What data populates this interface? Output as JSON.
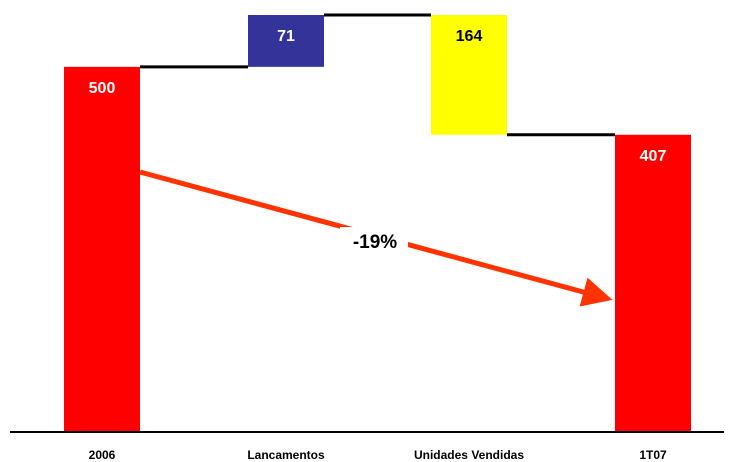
{
  "chart_data": {
    "type": "waterfall",
    "categories": [
      "2006",
      "Lancamentos",
      "Unidades Vendidas",
      "1T07"
    ],
    "values": [
      500,
      71,
      -164,
      407
    ],
    "value_labels": [
      "500",
      "71",
      "164",
      "407"
    ],
    "colors": [
      "#ff0000",
      "#333399",
      "#ffff00",
      "#ff0000"
    ],
    "annotation": "-19%"
  }
}
